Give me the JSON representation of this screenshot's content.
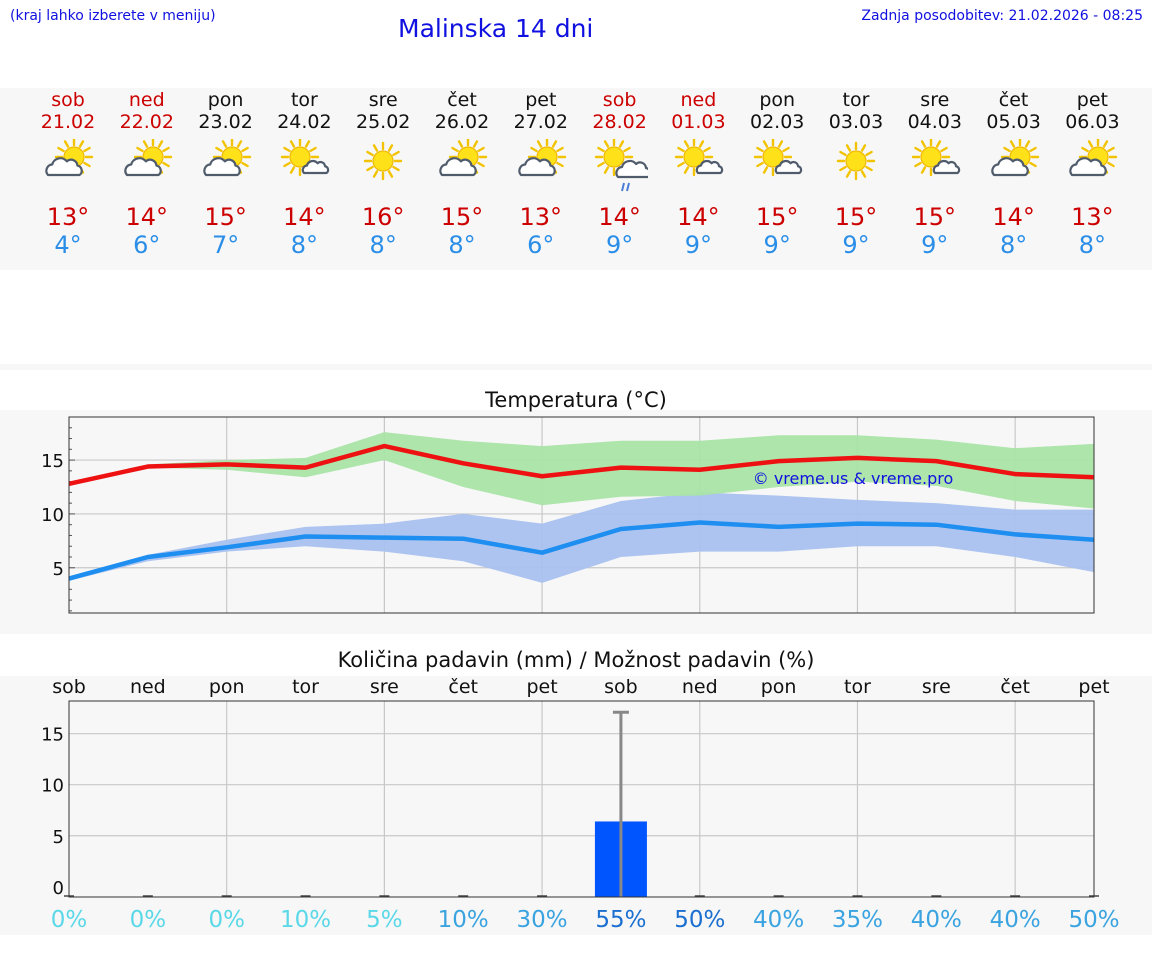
{
  "header": {
    "menu_hint": "(kraj lahko izberete v meniju)",
    "title": "Malinska 14 dni",
    "updated": "Zadnja posodobitev: 21.02.2026 - 08:25"
  },
  "forecast": [
    {
      "day": "sob",
      "date": "21.02",
      "weekend": true,
      "icon": "sun-cloud-icon",
      "tmax": "13°",
      "tmin": "4°"
    },
    {
      "day": "ned",
      "date": "22.02",
      "weekend": true,
      "icon": "sun-cloud-icon",
      "tmax": "14°",
      "tmin": "6°"
    },
    {
      "day": "pon",
      "date": "23.02",
      "weekend": false,
      "icon": "sun-cloud-icon",
      "tmax": "15°",
      "tmin": "7°"
    },
    {
      "day": "tor",
      "date": "24.02",
      "weekend": false,
      "icon": "sun-small-cloud-icon",
      "tmax": "14°",
      "tmin": "8°"
    },
    {
      "day": "sre",
      "date": "25.02",
      "weekend": false,
      "icon": "sun-icon",
      "tmax": "16°",
      "tmin": "8°"
    },
    {
      "day": "čet",
      "date": "26.02",
      "weekend": false,
      "icon": "sun-cloud-icon",
      "tmax": "15°",
      "tmin": "8°"
    },
    {
      "day": "pet",
      "date": "27.02",
      "weekend": false,
      "icon": "sun-cloud-icon",
      "tmax": "13°",
      "tmin": "6°"
    },
    {
      "day": "sob",
      "date": "28.02",
      "weekend": true,
      "icon": "sun-rain-icon",
      "tmax": "14°",
      "tmin": "9°"
    },
    {
      "day": "ned",
      "date": "01.03",
      "weekend": true,
      "icon": "sun-small-cloud-icon",
      "tmax": "14°",
      "tmin": "9°"
    },
    {
      "day": "pon",
      "date": "02.03",
      "weekend": false,
      "icon": "sun-small-cloud-icon",
      "tmax": "15°",
      "tmin": "9°"
    },
    {
      "day": "tor",
      "date": "03.03",
      "weekend": false,
      "icon": "sun-icon",
      "tmax": "15°",
      "tmin": "9°"
    },
    {
      "day": "sre",
      "date": "04.03",
      "weekend": false,
      "icon": "sun-small-cloud-icon",
      "tmax": "15°",
      "tmin": "9°"
    },
    {
      "day": "čet",
      "date": "05.03",
      "weekend": false,
      "icon": "sun-cloud-icon",
      "tmax": "14°",
      "tmin": "8°"
    },
    {
      "day": "pet",
      "date": "06.03",
      "weekend": false,
      "icon": "sun-cloud-icon",
      "tmax": "13°",
      "tmin": "8°"
    }
  ],
  "colors": {
    "max_line": "#ee1111",
    "max_band": "#a9e4a6",
    "min_line": "#1e8ef0",
    "min_band": "#a9c1ef",
    "precip_bar": "#0055ff",
    "precip_err": "#888888",
    "weekend": "#cc0000",
    "text": "#111111",
    "link": "#1010e0"
  },
  "chart_data": [
    {
      "type": "line",
      "title": "Temperatura (°C)",
      "watermark": "© vreme.us & vreme.pro",
      "x": [
        "21.02",
        "22.02",
        "23.02",
        "24.02",
        "25.02",
        "26.02",
        "27.02",
        "28.02",
        "01.03",
        "02.03",
        "03.03",
        "04.03",
        "05.03",
        "06.03"
      ],
      "ylim": [
        0.8,
        19
      ],
      "yticks": [
        5,
        10,
        15
      ],
      "series": [
        {
          "name": "max",
          "values": [
            12.8,
            14.4,
            14.6,
            14.3,
            16.3,
            14.7,
            13.5,
            14.3,
            14.1,
            14.9,
            15.2,
            14.9,
            13.7,
            13.4
          ],
          "band_low": [
            12.8,
            14.3,
            14.1,
            13.4,
            15.0,
            12.5,
            10.8,
            11.6,
            11.7,
            12.5,
            13.0,
            12.6,
            11.2,
            10.5
          ],
          "band_high": [
            12.8,
            14.6,
            15.0,
            15.2,
            17.6,
            16.8,
            16.3,
            16.8,
            16.8,
            17.3,
            17.3,
            16.9,
            16.1,
            16.5
          ]
        },
        {
          "name": "min",
          "values": [
            4.0,
            6.0,
            6.9,
            7.9,
            7.8,
            7.7,
            6.4,
            8.6,
            9.2,
            8.8,
            9.1,
            9.0,
            8.1,
            7.6
          ],
          "band_low": [
            3.8,
            5.6,
            6.5,
            7.0,
            6.5,
            5.6,
            3.6,
            6.0,
            6.5,
            6.5,
            7.0,
            7.0,
            6.0,
            4.6
          ],
          "band_high": [
            4.2,
            6.2,
            7.6,
            8.8,
            9.1,
            10.0,
            9.1,
            11.2,
            12.0,
            11.7,
            11.3,
            11.0,
            10.4,
            10.4
          ]
        }
      ]
    },
    {
      "type": "bar",
      "title": "Količina padavin (mm) / Možnost padavin (%)",
      "categories": [
        "sob",
        "ned",
        "pon",
        "tor",
        "sre",
        "čet",
        "pet",
        "sob",
        "ned",
        "pon",
        "tor",
        "sre",
        "čet",
        "pet"
      ],
      "values": [
        0,
        0,
        0,
        0,
        0,
        0,
        0,
        6.4,
        0,
        0,
        0,
        0,
        0,
        0
      ],
      "err_high": [
        0,
        0,
        0,
        0,
        0,
        0,
        0,
        17.1,
        0,
        0,
        0,
        0,
        0,
        0
      ],
      "ylim": [
        -1,
        18.2
      ],
      "yticks": [
        0,
        5,
        10,
        15
      ],
      "probability": [
        "0%",
        "0%",
        "0%",
        "10%",
        "5%",
        "10%",
        "30%",
        "55%",
        "50%",
        "40%",
        "35%",
        "40%",
        "40%",
        "50%"
      ],
      "probability_colors": [
        "#5bd8e8",
        "#5bd8e8",
        "#5bd8e8",
        "#5bd8e8",
        "#5bd8e8",
        "#3aa3e0",
        "#3aa3e0",
        "#1a6fd0",
        "#1a6fd0",
        "#3aa3e0",
        "#3aa3e0",
        "#3aa3e0",
        "#3aa3e0",
        "#3aa3e0"
      ]
    }
  ]
}
